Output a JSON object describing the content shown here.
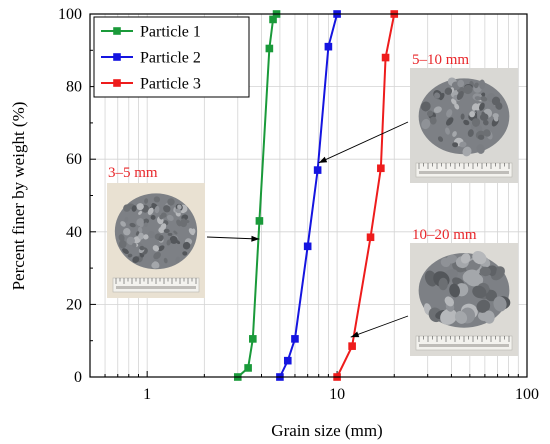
{
  "chart_data": {
    "type": "line",
    "xlabel": "Grain size (mm)",
    "ylabel": "Percent finer by weight (%)",
    "x_scale": "log",
    "xlim": [
      0.5,
      100
    ],
    "ylim": [
      0,
      100
    ],
    "x_ticks": [
      1,
      10,
      100
    ],
    "x_tick_labels": [
      "1",
      "10",
      "100"
    ],
    "y_ticks": [
      0,
      20,
      40,
      60,
      80,
      100
    ],
    "y_tick_labels": [
      "0",
      "20",
      "40",
      "60",
      "80",
      "100"
    ],
    "grid": true,
    "legend_position": "top-left",
    "series": [
      {
        "name": "Particle 1",
        "color": "#1a9a3a",
        "x": [
          3.0,
          3.4,
          3.6,
          3.9,
          4.4,
          4.6,
          4.8
        ],
        "y": [
          0,
          2.5,
          10.5,
          43,
          90.5,
          98.5,
          100
        ]
      },
      {
        "name": "Particle 2",
        "color": "#1515e0",
        "x": [
          5.0,
          5.5,
          6.0,
          7.0,
          7.9,
          9.0,
          10.0
        ],
        "y": [
          0,
          4.5,
          10.5,
          36,
          57,
          91,
          100
        ]
      },
      {
        "name": "Particle 3",
        "color": "#ee1c1c",
        "x": [
          10.0,
          12.0,
          15.0,
          17.0,
          18.0,
          20.0
        ],
        "y": [
          0,
          8.5,
          38.5,
          57.5,
          88,
          100
        ]
      }
    ],
    "annotations": [
      {
        "text": "3–5 mm",
        "photo": "gravel-photo-3-5mm",
        "series": "Particle 1",
        "point": [
          3.9,
          38
        ]
      },
      {
        "text": "5–10 mm",
        "photo": "gravel-photo-5-10mm",
        "series": "Particle 2",
        "point": [
          8.0,
          59
        ]
      },
      {
        "text": "10–20 mm",
        "photo": "gravel-photo-10-20mm",
        "series": "Particle 3",
        "point": [
          11.8,
          11
        ]
      }
    ],
    "annotation_color": "#e8262a"
  }
}
